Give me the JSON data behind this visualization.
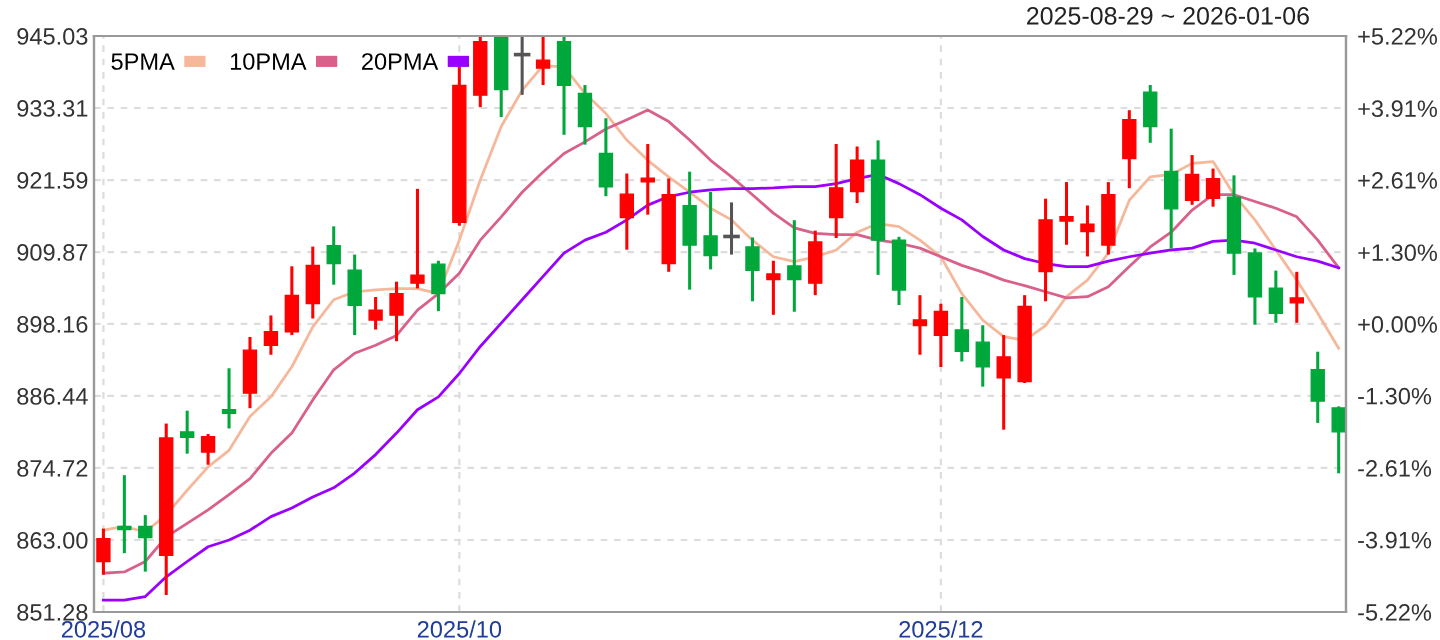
{
  "chart_data": {
    "type": "candlestick",
    "subtitle": "2025-08-29 ~ 2026-01-06",
    "categories": [
      "2025/08",
      null,
      null,
      null,
      null,
      null,
      null,
      null,
      null,
      null,
      null,
      null,
      null,
      null,
      null,
      null,
      null,
      "2025/10",
      null,
      null,
      null,
      null,
      null,
      null,
      null,
      null,
      null,
      null,
      null,
      null,
      null,
      null,
      null,
      null,
      null,
      null,
      null,
      null,
      null,
      null,
      "2025/12",
      null,
      null,
      null,
      null,
      null,
      null,
      null,
      null,
      null,
      null,
      null,
      null,
      null,
      null,
      null,
      null,
      null,
      null,
      null
    ],
    "ohlc": [
      [
        859.5,
        864.6,
        857.6,
        863.2
      ],
      [
        865.2,
        873.3,
        861.1,
        864.7
      ],
      [
        865.2,
        866.8,
        858.1,
        863.4
      ],
      [
        860.5,
        881.7,
        854.3,
        879.6
      ],
      [
        880.6,
        883.8,
        877.3,
        879.7
      ],
      [
        877.3,
        880.0,
        875.5,
        879.8
      ],
      [
        884.2,
        890.7,
        881.4,
        883.6
      ],
      [
        886.9,
        895.8,
        884.7,
        893.9
      ],
      [
        894.7,
        899.3,
        893.4,
        896.9
      ],
      [
        896.9,
        907.3,
        896.6,
        902.8
      ],
      [
        901.5,
        910.5,
        899.3,
        907.7
      ],
      [
        910.9,
        913.8,
        904.8,
        908.0
      ],
      [
        906.9,
        909.2,
        896.6,
        901.2
      ],
      [
        898.8,
        902.3,
        897.5,
        900.4
      ],
      [
        899.6,
        904.8,
        895.6,
        903.1
      ],
      [
        904.8,
        919.9,
        904.2,
        906.1
      ],
      [
        907.9,
        908.2,
        900.5,
        903.1
      ],
      [
        914.7,
        939.8,
        914.4,
        937.0
      ],
      [
        935.4,
        945.0,
        933.7,
        944.1
      ],
      [
        944.9,
        945.0,
        932.1,
        936.3
      ],
      [
        942.0,
        944.9,
        935.7,
        942.0
      ],
      [
        939.8,
        945.0,
        937.3,
        941.1
      ],
      [
        944.1,
        944.8,
        929.2,
        937.0
      ],
      [
        935.7,
        936.8,
        927.6,
        930.3
      ],
      [
        925.9,
        931.4,
        919.2,
        920.5
      ],
      [
        915.5,
        922.4,
        910.5,
        919.3
      ],
      [
        921.3,
        927.2,
        916.2,
        921.9
      ],
      [
        908.0,
        921.6,
        906.9,
        919.2
      ],
      [
        917.4,
        922.7,
        904.0,
        911.0
      ],
      [
        912.5,
        919.4,
        907.3,
        909.3
      ],
      [
        912.4,
        917.7,
        909.7,
        912.4
      ],
      [
        910.7,
        912.0,
        902.1,
        906.9
      ],
      [
        905.4,
        908.2,
        899.9,
        906.3
      ],
      [
        907.6,
        914.8,
        900.4,
        905.4
      ],
      [
        904.8,
        913.1,
        903.1,
        911.5
      ],
      [
        915.5,
        927.2,
        912.4,
        920.3
      ],
      [
        919.7,
        926.8,
        918.1,
        924.8
      ],
      [
        924.8,
        927.8,
        906.4,
        911.8
      ],
      [
        911.8,
        912.1,
        901.5,
        903.7
      ],
      [
        897.9,
        902.6,
        893.4,
        898.8
      ],
      [
        896.3,
        901.2,
        891.4,
        900.2
      ],
      [
        897.2,
        902.3,
        892.3,
        893.7
      ],
      [
        895.2,
        897.7,
        888.2,
        891.2
      ],
      [
        889.4,
        896.1,
        881.2,
        892.8
      ],
      [
        888.8,
        902.6,
        888.8,
        901.0
      ],
      [
        906.7,
        918.3,
        902.1,
        915.1
      ],
      [
        914.9,
        921.0,
        911.3,
        915.6
      ],
      [
        913.2,
        917.2,
        909.4,
        914.4
      ],
      [
        911.0,
        921.0,
        909.7,
        919.2
      ],
      [
        925.1,
        932.7,
        920.5,
        931.4
      ],
      [
        935.9,
        936.8,
        927.9,
        930.3
      ],
      [
        923.0,
        929.7,
        910.7,
        916.9
      ],
      [
        918.3,
        925.4,
        917.8,
        922.5
      ],
      [
        918.6,
        923.2,
        917.5,
        921.8
      ],
      [
        918.8,
        922.1,
        906.4,
        909.7
      ],
      [
        909.7,
        910.2,
        898.3,
        902.6
      ],
      [
        904.0,
        906.6,
        898.6,
        899.9
      ],
      [
        901.6,
        906.4,
        898.6,
        902.4
      ],
      [
        890.7,
        893.4,
        882.3,
        885.6
      ],
      [
        884.5,
        884.5,
        874.1,
        880.6
      ]
    ],
    "colors": [
      "#ff0000",
      "#00a83c",
      "#00a83c",
      "#ff0000",
      "#00a83c",
      "#ff0000",
      "#00a83c",
      "#ff0000",
      "#ff0000",
      "#ff0000",
      "#ff0000",
      "#00a83c",
      "#00a83c",
      "#ff0000",
      "#ff0000",
      "#ff0000",
      "#00a83c",
      "#ff0000",
      "#ff0000",
      "#00a83c",
      "#555555",
      "#ff0000",
      "#00a83c",
      "#00a83c",
      "#00a83c",
      "#ff0000",
      "#ff0000",
      "#ff0000",
      "#00a83c",
      "#00a83c",
      "#555555",
      "#00a83c",
      "#ff0000",
      "#00a83c",
      "#ff0000",
      "#ff0000",
      "#ff0000",
      "#00a83c",
      "#00a83c",
      "#ff0000",
      "#ff0000",
      "#00a83c",
      "#00a83c",
      "#ff0000",
      "#ff0000",
      "#ff0000",
      "#ff0000",
      "#ff0000",
      "#ff0000",
      "#ff0000",
      "#00a83c",
      "#00a83c",
      "#ff0000",
      "#ff0000",
      "#00a83c",
      "#00a83c",
      "#00a83c",
      "#ff0000",
      "#00a83c",
      "#00a83c"
    ],
    "series": [
      {
        "type": "line",
        "name": "5PMA",
        "color": "#f5b89a",
        "values": [
          864.6,
          865.2,
          864.3,
          867.1,
          871.1,
          874.9,
          877.6,
          883.1,
          886.3,
          891.2,
          897.7,
          902.1,
          903.4,
          903.7,
          903.9,
          903.9,
          903.1,
          911.8,
          921.6,
          930.3,
          936.2,
          940.2,
          940.0,
          935.7,
          932.4,
          928.1,
          924.8,
          922.1,
          919.6,
          917.0,
          915.1,
          911.8,
          909.1,
          908.3,
          909.1,
          910.2,
          913.1,
          914.5,
          914.0,
          911.8,
          909.1,
          903.1,
          898.8,
          896.1,
          895.5,
          897.9,
          902.6,
          905.3,
          909.7,
          918.3,
          922.1,
          922.5,
          924.3,
          924.6,
          919.2,
          915.1,
          910.2,
          905.3,
          899.9,
          894.2
        ]
      },
      {
        "type": "line",
        "name": "10PMA",
        "color": "#d9608a",
        "values": [
          857.6,
          857.8,
          859.5,
          863.5,
          865.7,
          867.9,
          870.4,
          873.0,
          877.1,
          880.4,
          885.8,
          890.7,
          893.4,
          894.7,
          896.3,
          900.4,
          903.1,
          906.4,
          911.8,
          915.6,
          919.6,
          922.9,
          925.9,
          927.8,
          929.9,
          931.4,
          933.0,
          931.1,
          928.1,
          924.8,
          922.1,
          919.2,
          916.2,
          913.8,
          912.9,
          912.7,
          912.7,
          911.8,
          911.3,
          910.5,
          909.1,
          907.7,
          906.6,
          905.3,
          904.4,
          903.4,
          902.4,
          902.6,
          904.2,
          907.5,
          910.7,
          913.1,
          916.7,
          919.2,
          919.2,
          918.1,
          917.0,
          915.6,
          911.8,
          907.3
        ]
      },
      {
        "type": "line",
        "name": "20PMA",
        "color": "#9900ff",
        "values": [
          853.2,
          853.2,
          853.8,
          857.0,
          859.5,
          861.9,
          863.0,
          864.6,
          866.8,
          868.2,
          870.0,
          871.5,
          873.9,
          876.9,
          880.4,
          884.2,
          886.3,
          890.1,
          894.5,
          898.3,
          902.1,
          905.9,
          909.7,
          911.8,
          913.1,
          915.1,
          917.5,
          918.9,
          919.6,
          920.0,
          920.2,
          920.2,
          920.3,
          920.5,
          920.5,
          921.0,
          921.8,
          922.5,
          921.0,
          919.2,
          917.0,
          915.1,
          912.4,
          910.2,
          908.8,
          908.0,
          907.5,
          907.5,
          908.4,
          909.1,
          909.7,
          910.2,
          910.5,
          911.6,
          911.8,
          911.3,
          910.2,
          909.1,
          908.4,
          907.3
        ]
      }
    ],
    "ylim": [
      851.28,
      945.03
    ],
    "yticks": [
      851.28,
      {
        "value": 863.0,
        "label": "863.00"
      },
      874.72,
      886.44,
      898.16,
      909.87,
      921.59,
      933.31,
      945.03
    ],
    "y2lim": [
      -5.22,
      5.22
    ],
    "y2ticks": [
      {
        "value": -5.22,
        "label": "-5.22%"
      },
      {
        "value": -3.91,
        "label": "-3.91%"
      },
      {
        "value": -2.61,
        "label": "-2.61%"
      },
      {
        "value": -1.3,
        "label": "-1.30%"
      },
      {
        "value": 0.0,
        "label": "+0.00%"
      },
      {
        "value": 1.3,
        "label": "+1.30%"
      },
      {
        "value": 2.61,
        "label": "+2.61%"
      },
      {
        "value": 3.91,
        "label": "+3.91%"
      },
      {
        "value": 5.22,
        "label": "+5.22%"
      }
    ],
    "grid": true,
    "legend": "top left"
  }
}
